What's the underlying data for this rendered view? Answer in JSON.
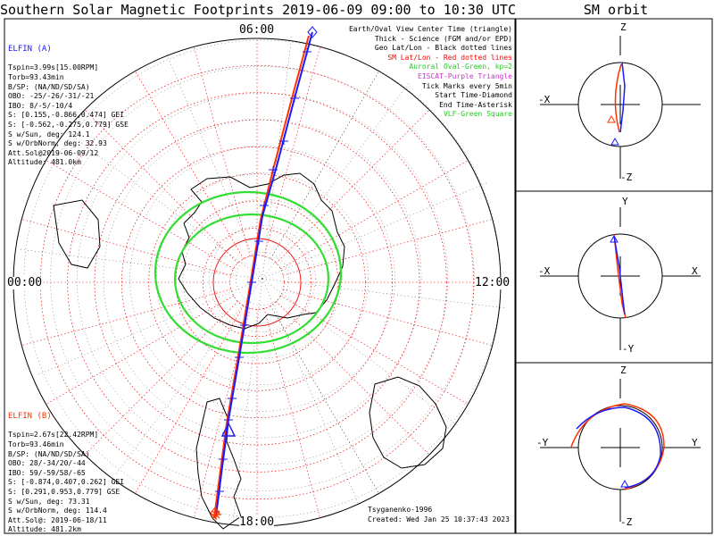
{
  "title": "Southern Solar Magnetic Footprints 2019-06-09 09:00 to 10:30 UTC",
  "orbit_title": "SM orbit",
  "clock_labels": {
    "top": "06:00",
    "left": "00:00",
    "right": "12:00",
    "bottom": "18:00"
  },
  "elfin_a": {
    "name": "ELFIN (A)",
    "color": "#1a1aff",
    "lines": [
      "Tspin=3.99s[15.00RPM]",
      "Torb=93.43min",
      "B/SP: (NA/ND/SD/SA)",
      "OBO: -25/-26/-31/-21",
      "IBO: 8/-5/-10/4",
      "S: [0.155,-0.866,0.474] GEI",
      "S: [-0.562,-0.275,0.779] GSE",
      "S w/Sun, deg: 124.1",
      "S w/OrbNorm, deg: 32.93",
      "Att.Sol@2019-06-09/12",
      "Altitude: 481.0km"
    ]
  },
  "elfin_b": {
    "name": "ELFIN (B)",
    "color": "#ff3300",
    "lines": [
      "Tspin=2.67s[22.42RPM]",
      "Torb=93.46min",
      "B/SP: (NA/ND/SD/SA)",
      "OBO: 28/-34/20/-44",
      "IBO: 59/-59/58/-65",
      "S: [-0.874,0.407,0.262] GEI",
      "S: [0.291,0.953,0.779] GSE",
      "S w/Sun, deg: 73.31",
      "S w/OrbNorm, deg: 114.4",
      "Att.Sol@: 2019-06-18/11",
      "Altitude: 481.2km"
    ]
  },
  "legend": [
    {
      "text": "Earth/Oval View Center Time (triangle)",
      "color": "#000000"
    },
    {
      "text": "Thick - Science (FGM and/or EPD)",
      "color": "#000000"
    },
    {
      "text": "Geo Lat/Lon - Black dotted lines",
      "color": "#000000"
    },
    {
      "text": "SM Lat/Lon - Red dotted lines",
      "color": "#ff0000"
    },
    {
      "text": "Auroral Oval-Green, kp=2",
      "color": "#22cc22"
    },
    {
      "text": "EISCAT-Purple Triangle",
      "color": "#cc33cc"
    },
    {
      "text": "Tick Marks every 5min",
      "color": "#000000"
    },
    {
      "text": "Start Time-Diamond",
      "color": "#000000"
    },
    {
      "text": "End Time-Asterisk",
      "color": "#000000"
    },
    {
      "text": "VLF-Green Square",
      "color": "#22cc22"
    }
  ],
  "credits": [
    "Tsyganenko-1996",
    "Created: Wed Jan 25 10:37:43 2023"
  ],
  "orbit_panels": [
    {
      "top": "Z",
      "bottom": "-Z",
      "left": "-X",
      "right": ""
    },
    {
      "top": "Y",
      "bottom": "-Y",
      "left": "-X",
      "right": "X"
    },
    {
      "top": "Z",
      "bottom": "-Z",
      "left": "-Y",
      "right": "Y"
    }
  ],
  "chart_data": {
    "type": "scatter",
    "title": "Southern Solar Magnetic Footprints 2019-06-09 09:00 to 10:30 UTC",
    "projection": "polar, south pole centered, magnetic local time around rim",
    "sm_latitude_rings_deg": [
      -90,
      -80,
      -70,
      -60,
      -50,
      -40,
      -30,
      -20,
      -10
    ],
    "mlt_ticks": [
      "00:00",
      "06:00",
      "12:00",
      "18:00"
    ],
    "auroral_oval_kp": 2,
    "series": [
      {
        "name": "ELFIN (A)",
        "color": "#1a1aff",
        "track_mlt_start": "06:00",
        "track_mlt_end": "18:00"
      },
      {
        "name": "ELFIN (B)",
        "color": "#ff3300",
        "track_mlt_start": "06:00",
        "track_mlt_end": "18:00"
      }
    ]
  }
}
